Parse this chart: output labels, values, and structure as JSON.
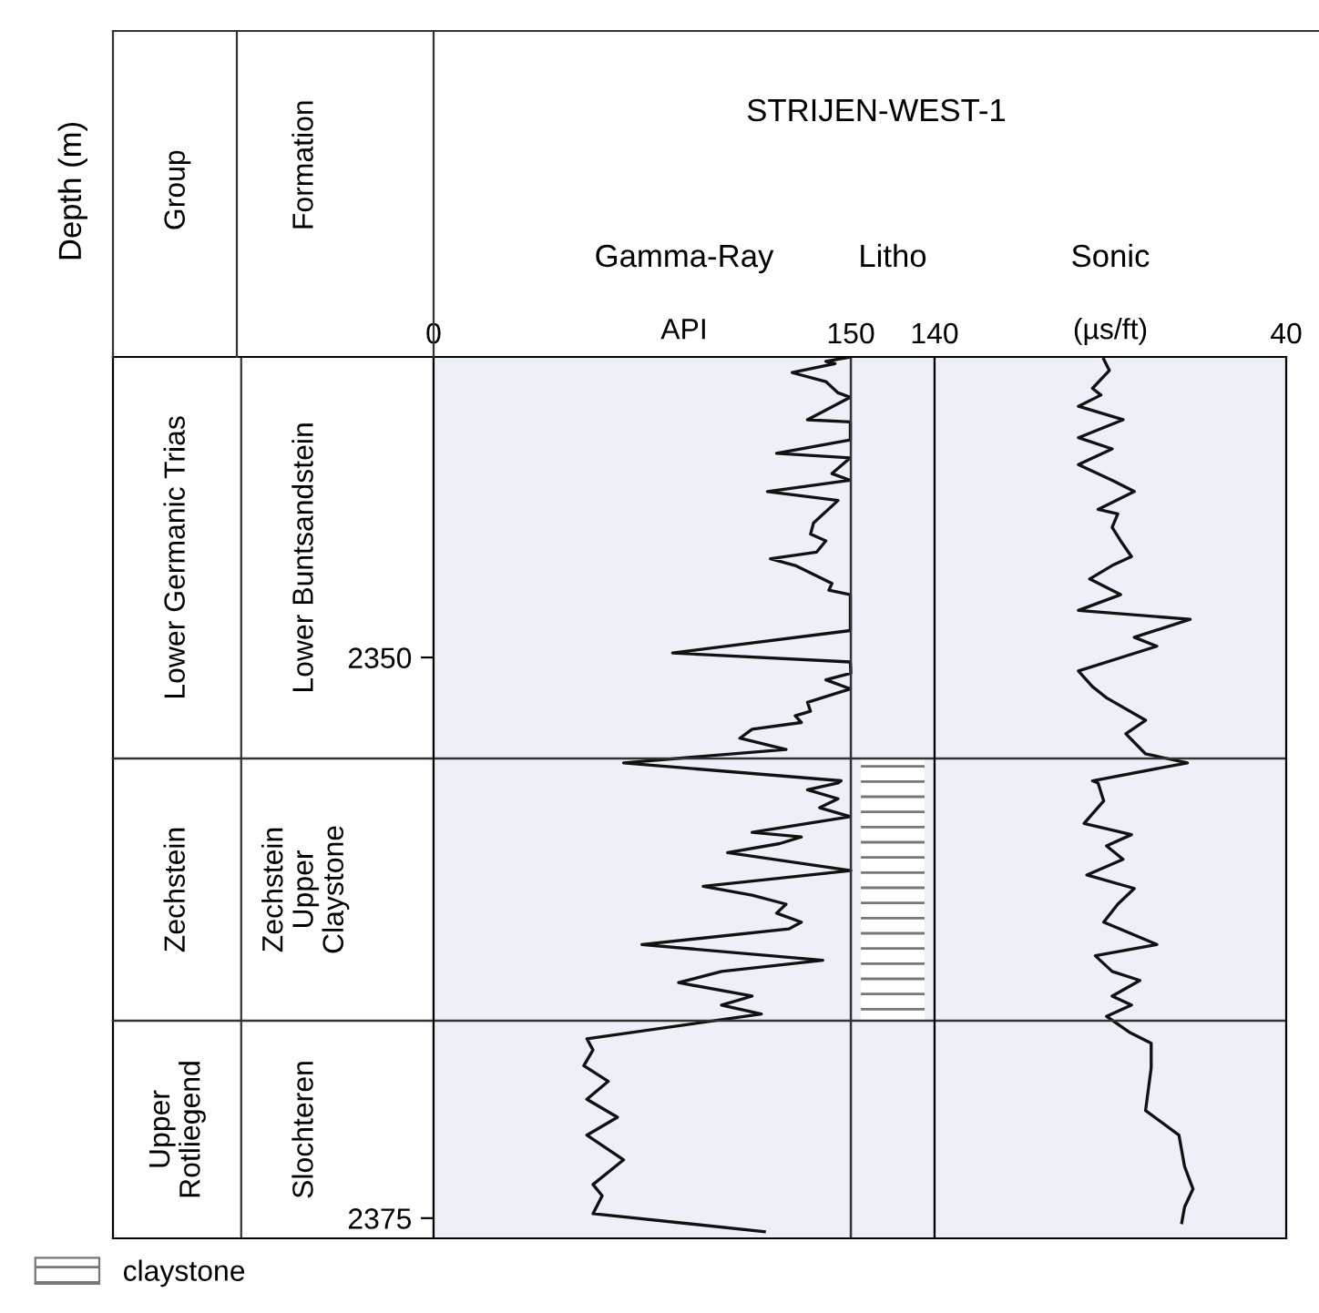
{
  "chart_data": [
    {
      "type": "other",
      "categories": [
        "Group",
        "Formation"
      ],
      "annotations": [
        "Lower Germanic Trias",
        "Zechstein",
        "Upper\nRotliegend",
        "Lower Buntsandstein",
        "Zechstein\nUpper\nClaystone",
        "Slochteren"
      ]
    },
    {
      "type": "line",
      "title": "Gamma-Ray",
      "xlabel": "API",
      "ylabel": "Depth (m)",
      "xlim": [
        0,
        180.1
      ],
      "xticks": [
        0,
        150
      ],
      "ylim": [
        2375.9,
        2336.6
      ],
      "yticks": [
        2350,
        2375
      ],
      "legend": "bottom",
      "ref_lines": [
        {
          "axis": "y",
          "value": 2354.5,
          "color": "#333333"
        },
        {
          "axis": "y",
          "value": 2366.2,
          "color": "#333333"
        },
        {
          "axis": "x",
          "value": 150,
          "color": "#333333"
        }
      ],
      "bands": [
        {
          "axis": "y",
          "from": 2354.5,
          "to": 2366.2,
          "label": "claystone",
          "color": "#777777"
        }
      ],
      "series": [
        {
          "color": "#111111",
          "x": [
            149.8,
            141.0,
            144.3,
            128.9,
            141.0,
            145.4,
            149.8,
            134.4,
            149.8,
            149.8,
            123.3,
            149.8,
            143.2,
            149.8,
            120.0,
            145.4,
            136.6,
            135.5,
            141.0,
            137.7,
            121.1,
            130.0,
            143.2,
            142.1,
            149.8,
            149.8,
            85.9,
            149.8,
            150,
            141.0,
            149.8,
            134.4,
            135.5,
            130.0,
            132.2,
            114.5,
            110.1,
            126.7,
            68.3,
            146.5,
            145.4,
            134.4,
            145.4,
            138.8,
            149.8,
            134.4,
            114.5,
            132.2,
            124.4,
            105.7,
            150,
            96.9,
            114.5,
            126.7,
            123.3,
            132.2,
            127.8,
            74.9,
            139.9,
            103.5,
            88.1,
            114.5,
            103.5,
            117.8,
            55.1,
            57.3,
            54.0,
            62.8,
            55.1,
            66.1,
            55.1,
            68.3,
            57.3,
            60.6,
            57.3,
            118.9
          ],
          "values": [
            2336.6,
            2336.8,
            2336.9,
            2337.3,
            2337.7,
            2338.2,
            2338.4,
            2339.4,
            2339.5,
            2340.3,
            2340.9,
            2341.1,
            2341.8,
            2342.1,
            2342.6,
            2343.0,
            2344.0,
            2344.5,
            2344.8,
            2345.3,
            2345.6,
            2345.9,
            2346.7,
            2347.0,
            2347.2,
            2348.8,
            2349.8,
            2350.2,
            2350.7,
            2351.0,
            2351.4,
            2352.0,
            2352.4,
            2352.6,
            2352.9,
            2353.2,
            2353.6,
            2354.1,
            2354.7,
            2355.5,
            2355.6,
            2355.9,
            2356.3,
            2356.7,
            2357.1,
            2357.4,
            2357.8,
            2358.0,
            2358.3,
            2358.7,
            2359.5,
            2360.2,
            2360.6,
            2361.0,
            2361.4,
            2361.8,
            2362.1,
            2362.8,
            2363.5,
            2364.0,
            2364.5,
            2365.1,
            2365.5,
            2365.9,
            2367.0,
            2367.5,
            2368.2,
            2368.9,
            2369.7,
            2370.5,
            2371.3,
            2372.4,
            2373.5,
            2374.0,
            2374.8,
            2375.6
          ]
        }
      ]
    },
    {
      "type": "other",
      "title": "Litho",
      "subtitle": "STRIJEN-WEST-1"
    },
    {
      "type": "line",
      "title": "Sonic",
      "xlabel": "(µs/ft)",
      "xlim": [
        140,
        40
      ],
      "xticks": [
        140,
        40
      ],
      "ylim": [
        2375.9,
        2336.6
      ],
      "tick_labels": "x",
      "ref_lines": [
        {
          "axis": "y",
          "value": 2354.5,
          "color": "#333333"
        },
        {
          "axis": "y",
          "value": 2366.2,
          "color": "#333333"
        }
      ],
      "series": [
        {
          "color": "#111111",
          "x": [
            91.9,
            90.3,
            95.1,
            92.7,
            99.1,
            86.4,
            99.1,
            89.5,
            99.1,
            89.5,
            83.2,
            93.5,
            87.9,
            89.5,
            87.1,
            84.0,
            89.5,
            95.9,
            87.1,
            99.1,
            67.3,
            83.2,
            76.8,
            99.1,
            95.1,
            91.1,
            80.0,
            85.6,
            80.0,
            68.1,
            95.1,
            93.5,
            91.9,
            97.5,
            84.0,
            91.1,
            86.4,
            96.7,
            83.2,
            87.9,
            91.9,
            76.8,
            94.3,
            89.5,
            81.6,
            89.5,
            84.0,
            91.1,
            84.7,
            78.4,
            78.4,
            80.0,
            70.5,
            68.9,
            66.5,
            68.9,
            69.7
          ],
          "values": [
            2336.7,
            2337.2,
            2338.0,
            2338.3,
            2338.8,
            2339.4,
            2340.2,
            2340.7,
            2341.4,
            2342.1,
            2342.6,
            2343.4,
            2343.6,
            2344.2,
            2344.8,
            2345.5,
            2345.9,
            2346.5,
            2347.2,
            2347.9,
            2348.3,
            2349.1,
            2349.5,
            2350.6,
            2351.3,
            2351.8,
            2352.8,
            2353.4,
            2354.3,
            2354.7,
            2355.5,
            2355.6,
            2356.4,
            2357.4,
            2357.9,
            2358.4,
            2359.0,
            2359.7,
            2360.3,
            2361.0,
            2361.8,
            2362.8,
            2363.3,
            2364.0,
            2364.4,
            2365.1,
            2365.5,
            2366.0,
            2366.7,
            2367.2,
            2368.3,
            2370.2,
            2371.3,
            2372.7,
            2373.7,
            2374.5,
            2375.2
          ]
        }
      ]
    }
  ]
}
